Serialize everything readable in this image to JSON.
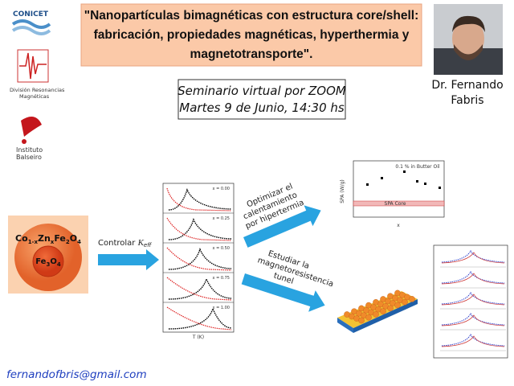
{
  "title": {
    "lines": [
      "\"Nanopartículas bimagnéticas con estructura core/shell:",
      "fabricación, propiedades magnéticas, hyperthermia y",
      "magnetotransporte\"."
    ]
  },
  "seminar": {
    "line1": "Seminario virtual por ZOOM",
    "line2": "Martes 9 de Junio, 14:30 hs"
  },
  "speaker": {
    "line1": "Dr. Fernando",
    "line2": "Fabris"
  },
  "logos": {
    "conicet": "CONICET",
    "division": [
      "División Resonancias",
      "Magnéticas"
    ],
    "balseiro": [
      "Instituto",
      "Balseiro"
    ]
  },
  "particle": {
    "shell": [
      "Co",
      "1-x",
      "Zn",
      "x",
      "Fe",
      "2",
      "O",
      "4"
    ],
    "core": [
      "Fe",
      "3",
      "O",
      "4"
    ]
  },
  "arrows": {
    "control": [
      "Controlar ",
      "K",
      "eff"
    ],
    "heating": [
      "Optimizar el",
      "calentamiento",
      "por hipertermia"
    ],
    "transport": [
      "Estudiar la",
      "magnetoresistencia",
      "tunel"
    ]
  },
  "spa_chart": {
    "ylabel": "SPA (W/g)",
    "xlabel": "x",
    "note": "0.1 % in Butter Oil",
    "band": "SPA Core"
  },
  "mag_chart": {
    "panels": [
      "x = 0.00",
      "x = 0.25",
      "x = 0.50",
      "x = 0.75",
      "x = 1.00"
    ],
    "xlabel": "T (K)"
  },
  "email": "fernandofbris@gmail.com"
}
